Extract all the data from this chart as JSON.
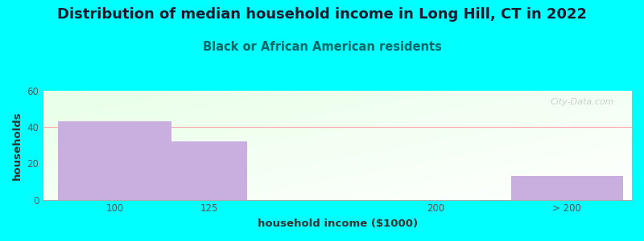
{
  "title": "Distribution of median household income in Long Hill, CT in 2022",
  "subtitle": "Black or African American residents",
  "xlabel": "household income ($1000)",
  "ylabel": "households",
  "bar_data": [
    [
      75,
      112.5,
      43
    ],
    [
      112.5,
      137.5,
      32
    ],
    [
      137.5,
      225,
      0
    ],
    [
      225,
      262,
      13
    ]
  ],
  "bar_color": "#c9aee0",
  "xtick_labels": [
    "100",
    "125",
    "200",
    "> 200"
  ],
  "xtick_positions": [
    93.75,
    125,
    200,
    243.5
  ],
  "xlim": [
    70,
    265
  ],
  "ylim": [
    0,
    60
  ],
  "yticks": [
    0,
    20,
    40,
    60
  ],
  "bg_color": "#00ffff",
  "title_fontsize": 13,
  "subtitle_fontsize": 10.5,
  "axis_label_fontsize": 9.5,
  "watermark": "City-Data.com",
  "hline_y": 40,
  "hline_color": "#ffaaaa"
}
